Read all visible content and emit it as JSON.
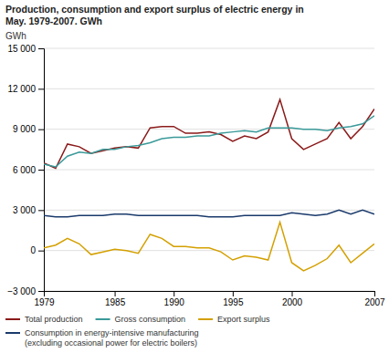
{
  "chart_data": {
    "type": "line",
    "title": "Production, consumption and export surplus of electric energy in\nMay. 1979-2007. GWh",
    "y_label": "GWh",
    "x": [
      1979,
      1980,
      1981,
      1982,
      1983,
      1984,
      1985,
      1986,
      1987,
      1988,
      1989,
      1990,
      1991,
      1992,
      1993,
      1994,
      1995,
      1996,
      1997,
      1998,
      1999,
      2000,
      2001,
      2002,
      2003,
      2004,
      2005,
      2006,
      2007
    ],
    "series": [
      {
        "name": "Total production",
        "color": "#8B1A1A",
        "values": [
          6500,
          6100,
          7900,
          7700,
          7200,
          7400,
          7600,
          7700,
          7600,
          9100,
          9200,
          9200,
          8700,
          8700,
          8800,
          8600,
          8100,
          8500,
          8300,
          8800,
          11200,
          8300,
          7500,
          7900,
          8300,
          9500,
          8300,
          9200,
          10500
        ]
      },
      {
        "name": "Gross consumption",
        "color": "#3A9999",
        "values": [
          6400,
          6200,
          7000,
          7300,
          7200,
          7500,
          7500,
          7700,
          7800,
          8000,
          8300,
          8400,
          8400,
          8500,
          8500,
          8700,
          8800,
          8900,
          8800,
          9100,
          9100,
          9100,
          9000,
          9000,
          8900,
          9100,
          9200,
          9400,
          10000
        ]
      },
      {
        "name": "Export surplus",
        "color": "#D4A000",
        "values": [
          200,
          400,
          900,
          500,
          -300,
          -100,
          100,
          0,
          -200,
          1200,
          900,
          300,
          300,
          200,
          200,
          -100,
          -700,
          -400,
          -500,
          -700,
          2100,
          -900,
          -1500,
          -1100,
          -600,
          400,
          -900,
          -200,
          500
        ]
      },
      {
        "name": "Consumption in energy-intensive manufacturing\n(excluding occasional power for electric boilers)",
        "color": "#1a3a6b",
        "values": [
          2600,
          2500,
          2500,
          2600,
          2600,
          2600,
          2700,
          2700,
          2600,
          2600,
          2600,
          2600,
          2600,
          2600,
          2500,
          2500,
          2500,
          2600,
          2600,
          2600,
          2600,
          2800,
          2700,
          2600,
          2700,
          3000,
          2700,
          3000,
          2700
        ]
      }
    ],
    "xlim": [
      1979,
      2007
    ],
    "xticks": [
      1979,
      1985,
      1990,
      1995,
      2000,
      2007
    ],
    "ylim": [
      -3000,
      15000
    ],
    "yticks": [
      {
        "value": -3000,
        "label": "−3 000"
      },
      0,
      {
        "value": 3000,
        "label": "3 000"
      },
      {
        "value": 6000,
        "label": "6 000"
      },
      {
        "value": 9000,
        "label": "9 000"
      },
      {
        "value": 12000,
        "label": "12 000"
      },
      {
        "value": 15000,
        "label": "15 000"
      }
    ],
    "grid": true,
    "legend": "bottom"
  }
}
